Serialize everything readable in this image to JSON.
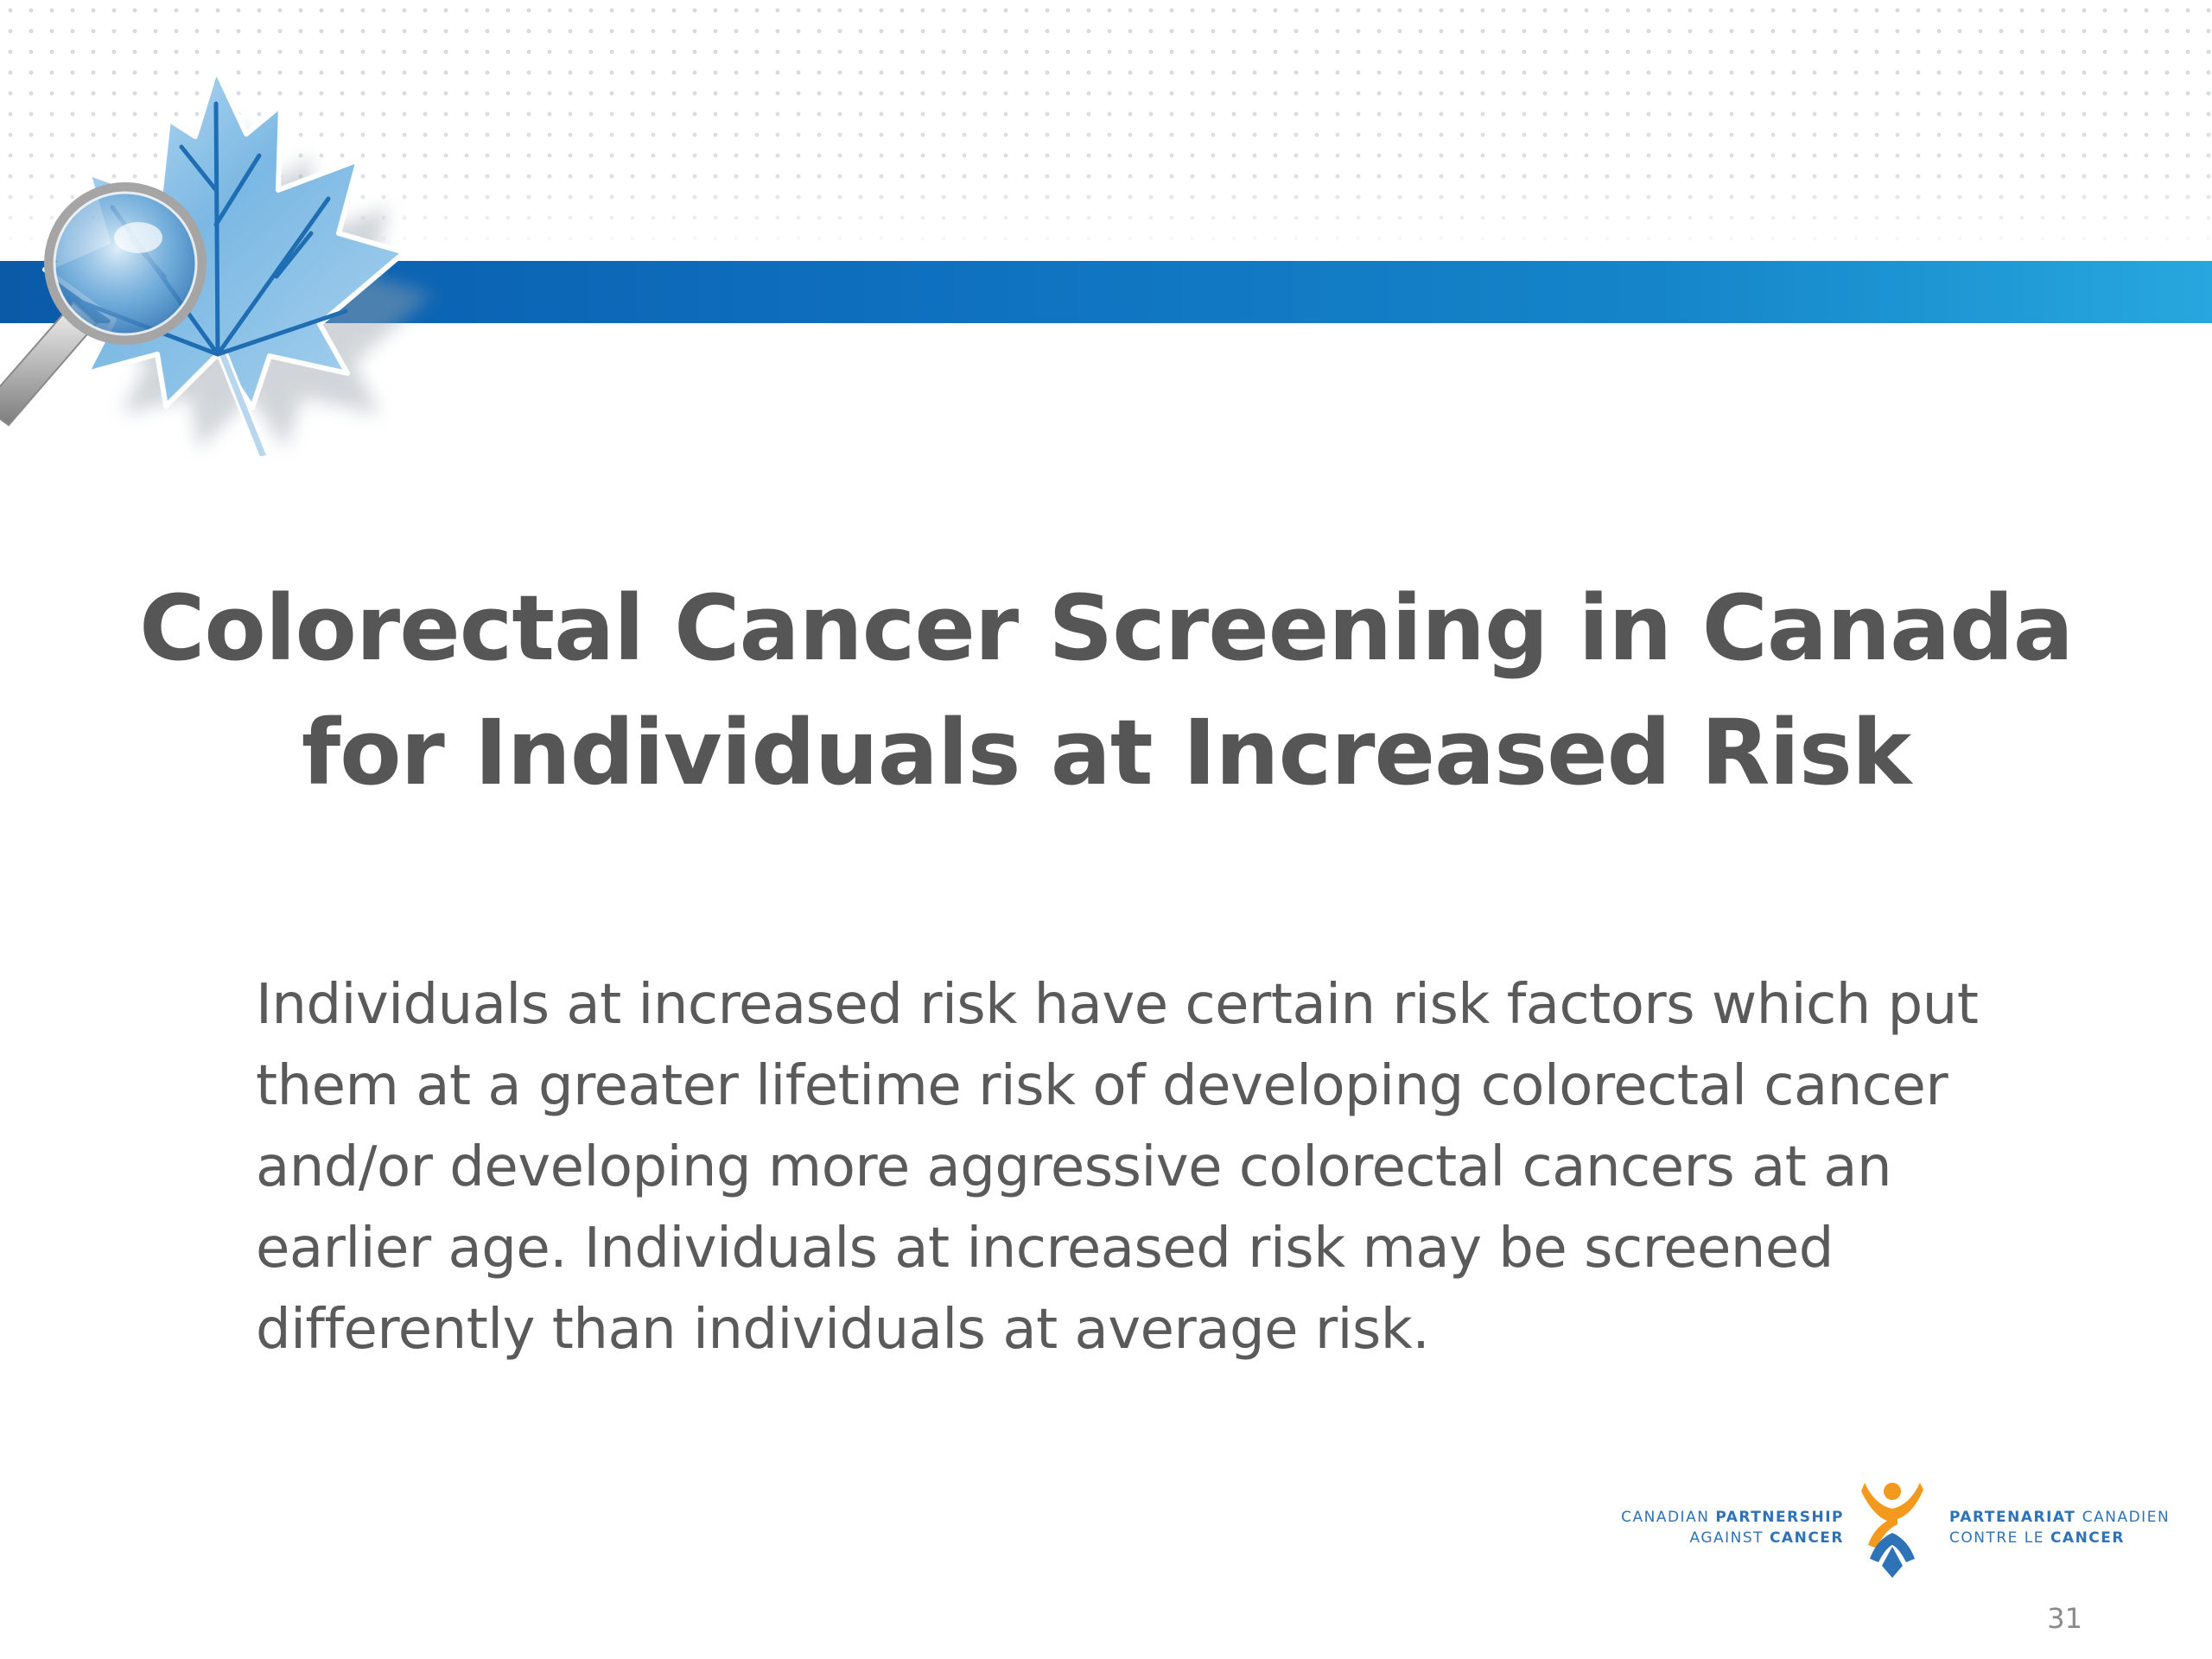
{
  "slide": {
    "title_line1": "Colorectal Cancer Screening in Canada",
    "title_line2": "for Individuals at Increased Risk",
    "body_line1": "Individuals at increased risk have certain risk factors which put",
    "body_line2": "them at a greater lifetime risk of developing colorectal cancer",
    "body_line3": "and/or developing more aggressive colorectal cancers at an",
    "body_line4": "earlier age. Individuals at increased risk may be screened",
    "body_line5": "differently than individuals at average risk.",
    "page_number": "31"
  },
  "logo": {
    "en_line1_a": "CANADIAN ",
    "en_line1_b": "PARTNERSHIP",
    "en_line2_a": "AGAINST ",
    "en_line2_b": "CANCER",
    "fr_line1_a": "PARTENARIAT ",
    "fr_line1_b": "CANADIEN",
    "fr_line2_a": "CONTRE LE ",
    "fr_line2_b": "CANCER"
  },
  "icons": {
    "leaf": "maple-leaf-icon",
    "magnifier": "magnifying-glass-icon",
    "logo_mark": "partnership-figure-icon"
  },
  "colors": {
    "band_start": "#0a5aa8",
    "band_end": "#27a7de",
    "title": "#565656",
    "body": "#5a5a5a",
    "logo_blue": "#2e72b8",
    "logo_orange": "#f39a1e"
  }
}
